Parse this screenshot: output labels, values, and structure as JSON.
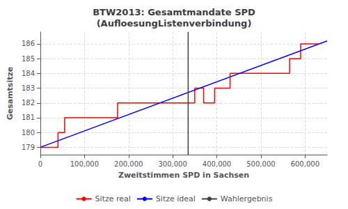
{
  "chart_data": {
    "type": "line",
    "title": "BTW2013: Gesamtmandate SPD\n(AufloesungListenverbindung)",
    "x_label": "Zweitstimmen SPD in Sachsen",
    "y_label": "Gesamtsitze",
    "xlim": [
      0,
      650000
    ],
    "ylim": [
      178.5,
      186.8
    ],
    "xticks": [
      0,
      {
        "value": 100000,
        "label": "100,000"
      },
      {
        "value": 200000,
        "label": "200,000"
      },
      {
        "value": 300000,
        "label": "300,000"
      },
      {
        "value": 400000,
        "label": "400,000"
      },
      {
        "value": 500000,
        "label": "500,000"
      },
      {
        "value": 600000,
        "label": "600,000"
      }
    ],
    "yticks": [
      179,
      180,
      181,
      182,
      183,
      184,
      185,
      186
    ],
    "grid": true,
    "legend": "bottom",
    "series": [
      {
        "name": "Sitze real",
        "color": "#ff0000",
        "x": [
          0,
          40000,
          40000,
          55000,
          55000,
          130000,
          130000,
          175000,
          175000,
          260000,
          260000,
          280000,
          280000,
          350000,
          350000,
          370000,
          370000,
          395000,
          395000,
          430000,
          430000,
          490000,
          490000,
          565000,
          565000,
          590000,
          590000,
          630000,
          630000
        ],
        "values": [
          179,
          179,
          180,
          180,
          181,
          181,
          181,
          181,
          182,
          182,
          182,
          182,
          182,
          182,
          183,
          183,
          182,
          182,
          183,
          183,
          184,
          184,
          184,
          184,
          185,
          185,
          186,
          186,
          186
        ]
      },
      {
        "name": "Sitze ideal",
        "color": "#0000ff",
        "x": [
          0,
          650000
        ],
        "values": [
          179.0,
          186.2
        ]
      },
      {
        "name": "Wahlergebnis",
        "color": "#404040",
        "type": "vline",
        "x": 335000
      }
    ]
  }
}
